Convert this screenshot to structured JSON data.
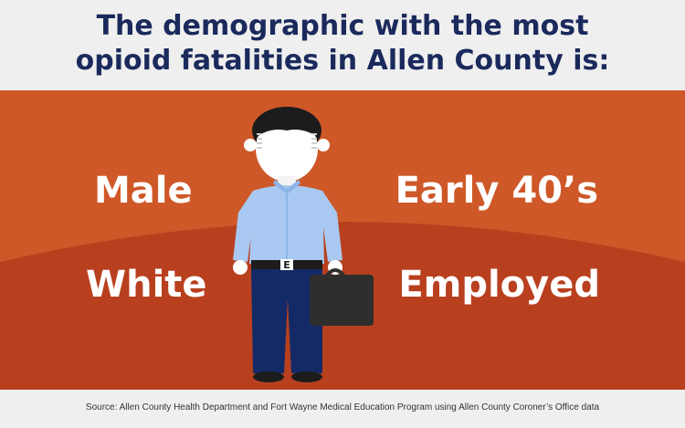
{
  "header": {
    "title_line1": "The demographic with the most",
    "title_line2": "opioid fatalities in Allen County is:"
  },
  "traits": {
    "gender": "Male",
    "race": "White",
    "age": "Early 40’s",
    "employment": "Employed"
  },
  "figure": {
    "belt_buckle": "E"
  },
  "footer": {
    "source": "Source: Allen County Health Department and Fort Wayne Medical Education Program using Allen County Coroner’s Office data"
  },
  "colors": {
    "background_orange": "#cf5828",
    "hill_dark_orange": "#b8401f",
    "title_navy": "#1b2a5c",
    "shirt_blue": "#a9c9f2",
    "pants_navy": "#142a66",
    "hair_black": "#1c1c1c",
    "briefcase": "#2e2e2e"
  }
}
